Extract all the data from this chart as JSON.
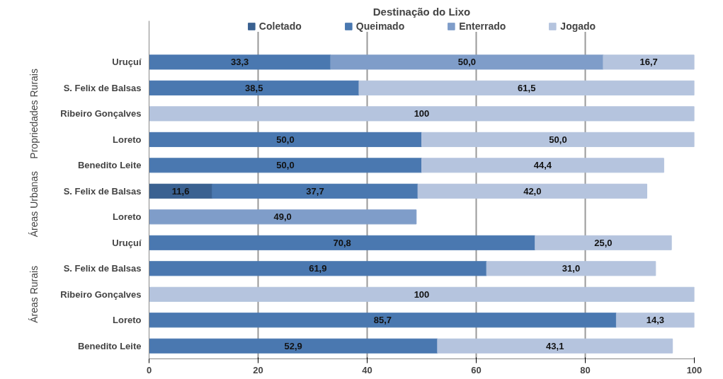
{
  "chart_data": {
    "type": "bar",
    "orientation": "horizontal",
    "stacked": true,
    "title": "Destinação do Lixo",
    "categories": [
      "Uruçuí",
      "S. Felix de Balsas",
      "Ribeiro Gonçalves",
      "Loreto",
      "Benedito Leite",
      "S. Felix de Balsas",
      "Loreto",
      "Uruçuí",
      "S. Felix de Balsas",
      "Ribeiro Gonçalves",
      "Loreto",
      "Benedito Leite"
    ],
    "series": [
      {
        "name": "Coletado",
        "color": "#3a6191",
        "values": [
          null,
          null,
          null,
          null,
          null,
          11.6,
          null,
          null,
          null,
          null,
          null,
          null
        ],
        "value_labels": [
          null,
          null,
          null,
          null,
          null,
          "11,6",
          null,
          null,
          null,
          null,
          null,
          null
        ]
      },
      {
        "name": "Queimado",
        "color": "#4a78b0",
        "values": [
          33.3,
          38.5,
          null,
          50.0,
          50.0,
          37.7,
          null,
          70.8,
          61.9,
          null,
          85.7,
          52.9
        ],
        "value_labels": [
          "33,3",
          "38,5",
          null,
          "50,0",
          "50,0",
          "37,7",
          null,
          "70,8",
          "61,9",
          null,
          "85,7",
          "52,9"
        ]
      },
      {
        "name": "Enterrado",
        "color": "#7f9dc9",
        "values": [
          50.0,
          null,
          null,
          null,
          null,
          null,
          49.0,
          null,
          null,
          null,
          null,
          null
        ],
        "value_labels": [
          "50,0",
          null,
          null,
          null,
          null,
          null,
          "49,0",
          null,
          null,
          null,
          null,
          null
        ]
      },
      {
        "name": "Jogado",
        "color": "#b5c4de",
        "values": [
          16.7,
          61.5,
          100,
          50.0,
          44.4,
          42.0,
          null,
          25.0,
          31.0,
          100,
          14.3,
          43.1
        ],
        "value_labels": [
          "16,7",
          "61,5",
          "100",
          "50,0",
          "44,4",
          "42,0",
          null,
          "25,0",
          "31,0",
          "100",
          "14,3",
          "43,1"
        ]
      }
    ],
    "xlim": [
      0,
      100
    ],
    "xticks": [
      0,
      20,
      40,
      60,
      80,
      100
    ],
    "grid": "x",
    "legend": "top",
    "annotations": [
      "Propriedades Rurais",
      "Áreas Urbanas",
      "Áreas Rurais"
    ]
  }
}
